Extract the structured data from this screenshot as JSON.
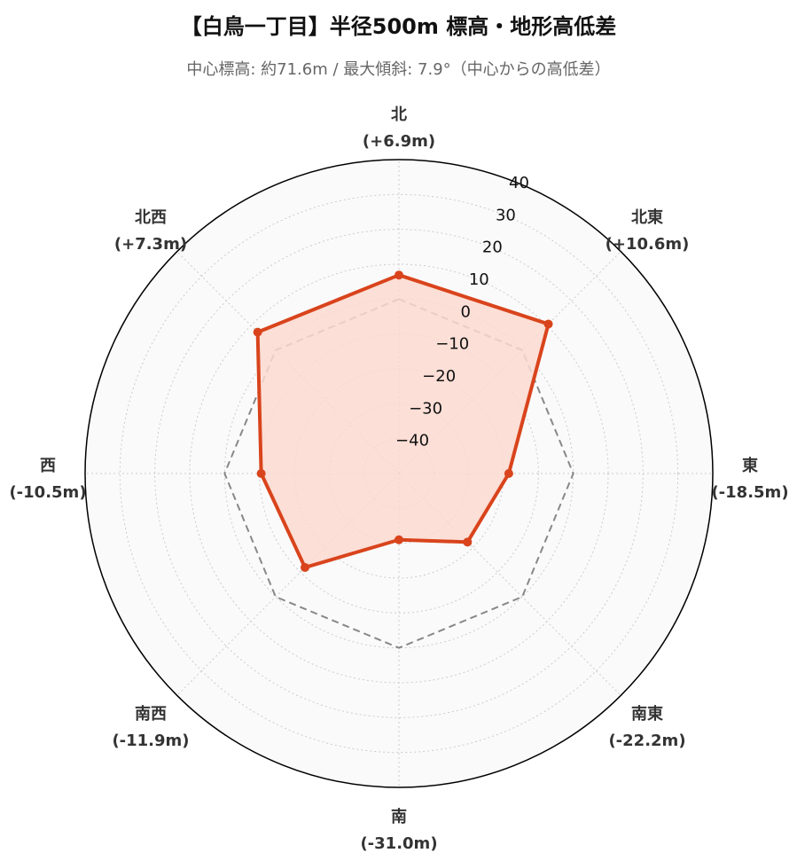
{
  "chart_data": {
    "type": "radar",
    "title": "【白鳥一丁目】半径500m 標高・地形高低差",
    "subtitle": "中心標高: 約71.6m / 最大傾斜: 7.9°（中心からの高低差）",
    "directions": [
      {
        "name": "北",
        "value_label": "(+6.9m)",
        "value": 6.9
      },
      {
        "name": "北東",
        "value_label": "(+10.6m)",
        "value": 10.6
      },
      {
        "name": "東",
        "value_label": "(-18.5m)",
        "value": -18.5
      },
      {
        "name": "南東",
        "value_label": "(-22.2m)",
        "value": -22.2
      },
      {
        "name": "南",
        "value_label": "(-31.0m)",
        "value": -31.0
      },
      {
        "name": "南西",
        "value_label": "(-11.9m)",
        "value": -11.9
      },
      {
        "name": "西",
        "value_label": "(-10.5m)",
        "value": -10.5
      },
      {
        "name": "北西",
        "value_label": "(+7.3m)",
        "value": 7.3
      }
    ],
    "reference_value": 0,
    "radial_range": [
      -50,
      40
    ],
    "radial_ticks": [
      40,
      30,
      20,
      10,
      0,
      -10,
      -20,
      -30,
      -40
    ],
    "radial_tick_labels": [
      "40",
      "30",
      "20",
      "10",
      "0",
      "−10",
      "−20",
      "−30",
      "−40"
    ],
    "grid": true,
    "colors": {
      "series_line": "#d9441c",
      "series_fill": "#fcd9cf",
      "reference_line": "#888888",
      "background": "#fafafa",
      "grid": "#cccccc",
      "frame": "#000000"
    }
  }
}
